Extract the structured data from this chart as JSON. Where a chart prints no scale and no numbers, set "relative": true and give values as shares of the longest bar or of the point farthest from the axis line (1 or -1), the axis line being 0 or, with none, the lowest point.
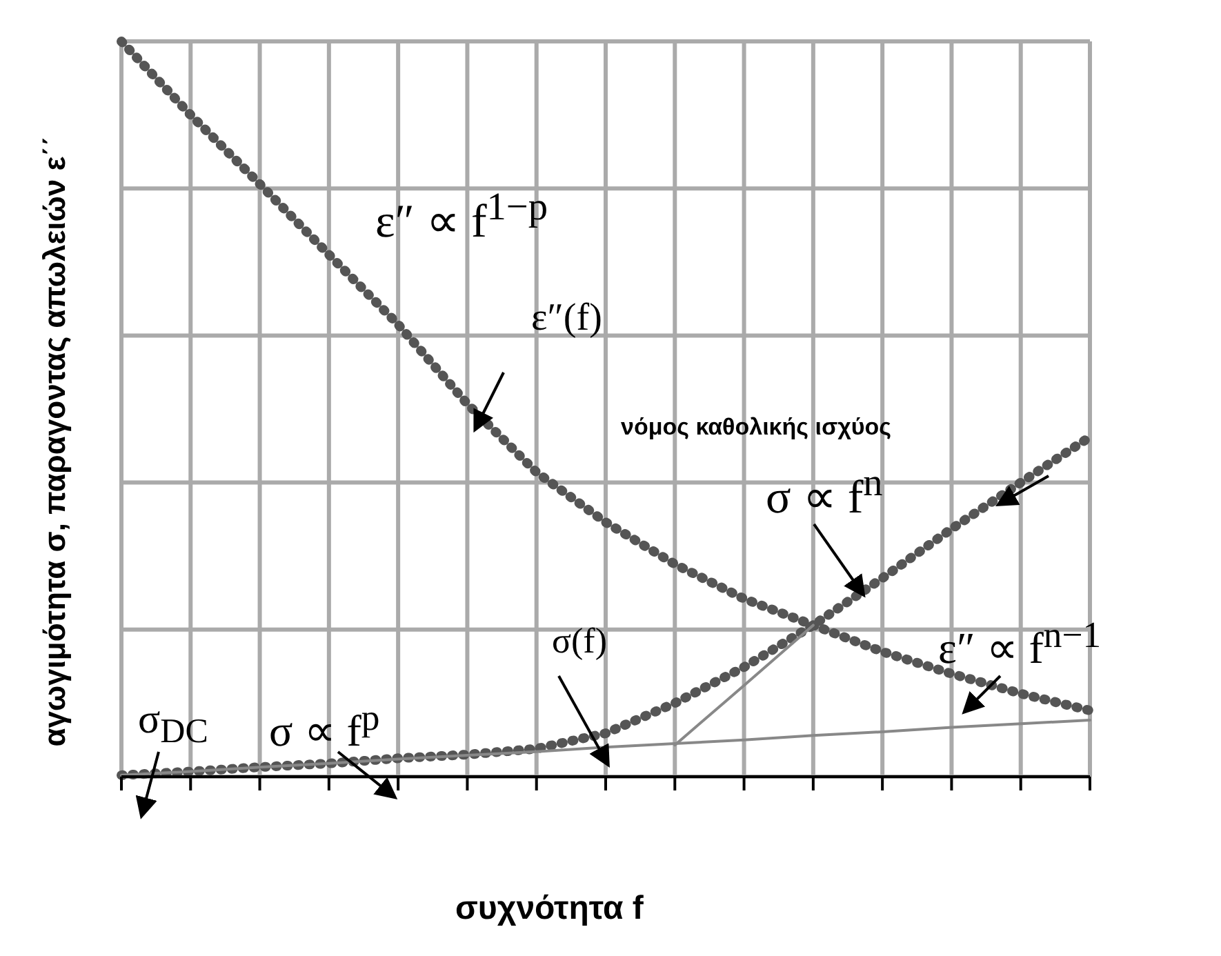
{
  "chart_data": {
    "type": "line",
    "relative": true,
    "xlabel": "συχνότητα f",
    "ylabel": "αγωγιμότητα σ, παραγοντας απωλειών ε΄΄",
    "categories": [
      null,
      null,
      null,
      null,
      null,
      null,
      null,
      null,
      null,
      null,
      null,
      null,
      null,
      null,
      null
    ],
    "grid": true,
    "series": [
      {
        "color": "#555555",
        "line_style": "dotted",
        "values": [
          1.0,
          0.9,
          0.806,
          0.71,
          0.615,
          0.507,
          0.414,
          0.346,
          0.289,
          0.242,
          0.206,
          0.17,
          0.14,
          0.113,
          0.09
        ]
      },
      {
        "color": "#555555",
        "line_style": "dotted",
        "values": [
          0.002,
          0.007,
          0.013,
          0.018,
          0.025,
          0.03,
          0.038,
          0.059,
          0.1,
          0.149,
          0.206,
          0.27,
          0.337,
          0.4,
          0.462
        ]
      },
      {
        "color": "#888888",
        "line_style": "solid",
        "values": [
          0.002,
          0.007,
          0.013,
          0.018,
          0.024,
          0.029,
          0.034,
          0.04,
          0.045,
          0.05,
          0.056,
          0.061,
          0.067,
          0.072,
          0.077
        ]
      },
      {
        "color": "#888888",
        "line_style": "solid",
        "values": [
          null,
          null,
          null,
          null,
          null,
          null,
          null,
          null,
          0.043,
          0.124,
          0.206,
          null,
          null,
          null,
          null
        ]
      }
    ],
    "annotations": [
      "ε″ ∝ f$^{1−p}$",
      "ε″(f)",
      "νόμος καθολικής ισχύος",
      "σ ∝ f$^{n}$",
      "ε″ ∝ f$^{n−1}$",
      "σ$_{DC}$",
      "σ ∝ f$^{p}$",
      "σ(f)"
    ]
  }
}
